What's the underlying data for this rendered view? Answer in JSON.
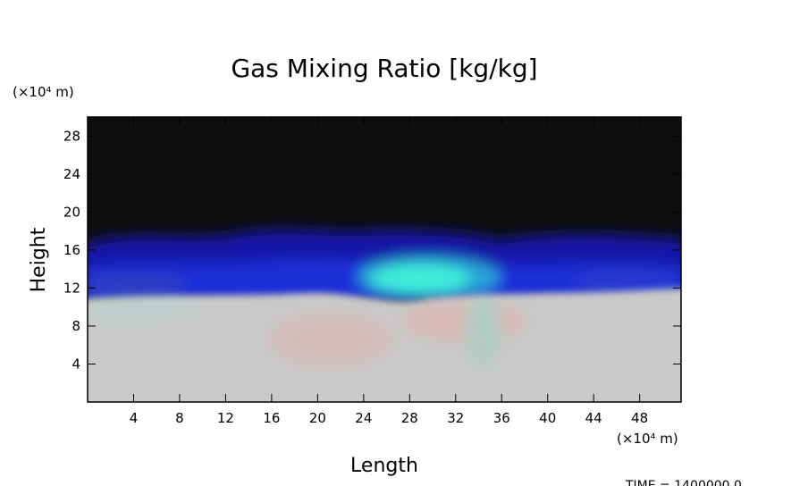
{
  "chart_data": {
    "type": "field",
    "title": "Gas Mixing Ratio [kg/kg]",
    "x_label": "Length",
    "y_label": "Height",
    "x_unit": "(×10⁴ m)",
    "y_unit": "(×10⁴ m)",
    "time_label": "TIME = 1400000.0",
    "xlim": [
      0,
      51.6
    ],
    "ylim": [
      0,
      30
    ],
    "xticks": [
      4,
      8,
      12,
      16,
      20,
      24,
      28,
      32,
      36,
      40,
      44,
      48
    ],
    "yticks": [
      4,
      8,
      12,
      16,
      20,
      24,
      28
    ]
  }
}
